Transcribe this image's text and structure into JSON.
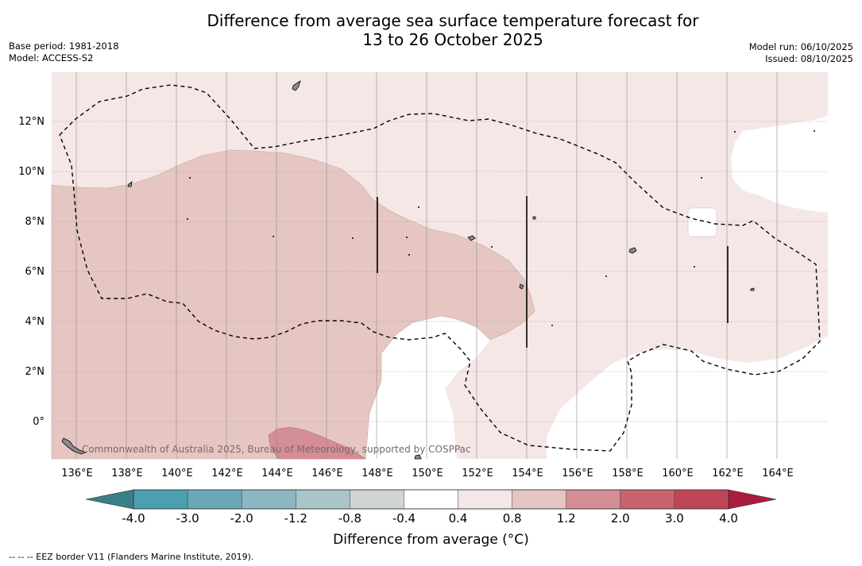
{
  "header": {
    "title_line1": "Difference from average sea surface temperature forecast for",
    "title_line2": "13 to 26 October 2025",
    "base_period": "Base period: 1981-2018",
    "model": "Model: ACCESS-S2",
    "model_run": "Model run: 06/10/2025",
    "issued": "Issued: 08/10/2025"
  },
  "map": {
    "x_ticks": [
      "136°E",
      "138°E",
      "140°E",
      "142°E",
      "144°E",
      "146°E",
      "148°E",
      "150°E",
      "152°E",
      "154°E",
      "156°E",
      "158°E",
      "160°E",
      "162°E",
      "164°E"
    ],
    "y_ticks": [
      "12°N",
      "10°N",
      "8°N",
      "6°N",
      "4°N",
      "2°N",
      "0°"
    ],
    "watermark": "Commonwealth of Australia 2025, Bureau of Meteorology, supported by COSPPac"
  },
  "colorbar": {
    "labels": [
      "-4.0",
      "-3.0",
      "-2.0",
      "-1.2",
      "-0.8",
      "-0.4",
      "0.4",
      "0.8",
      "1.2",
      "2.0",
      "3.0",
      "4.0"
    ],
    "colors": [
      "#4b9fb0",
      "#6aa8b8",
      "#8cb7c2",
      "#a9c5c9",
      "#d2d5d5",
      "#ffffff",
      "#f4e7e6",
      "#e6c6c2",
      "#d48e95",
      "#c8636f",
      "#bf4656"
    ],
    "under_color": "#3a7f88",
    "over_color": "#aa1c3c",
    "label": "Difference from average (°C)"
  },
  "footer": {
    "eez_note": "--  --  -- EEZ border V11 (Flanders Marine Institute, 2019)."
  }
}
